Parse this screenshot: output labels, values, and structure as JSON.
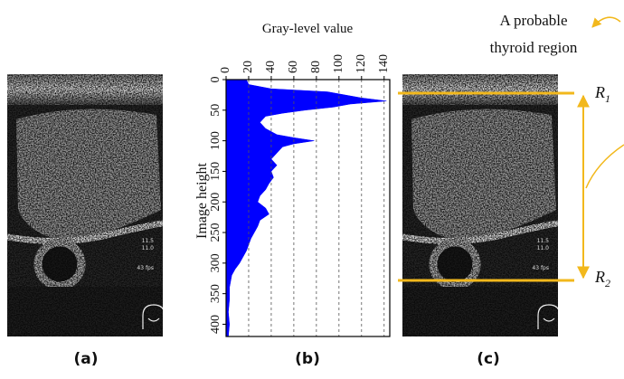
{
  "chart_data": {
    "type": "area",
    "x_label": "Image height",
    "y_label": "Gray-level value",
    "x": [
      0,
      8,
      15,
      20,
      25,
      30,
      35,
      40,
      45,
      50,
      55,
      60,
      70,
      80,
      90,
      95,
      100,
      105,
      110,
      120,
      130,
      140,
      150,
      160,
      170,
      180,
      190,
      200,
      210,
      220,
      230,
      240,
      250,
      260,
      270,
      280,
      290,
      300,
      310,
      320,
      330,
      340,
      360,
      380,
      400,
      420
    ],
    "values": [
      18,
      20,
      40,
      90,
      105,
      120,
      142,
      110,
      95,
      70,
      50,
      35,
      30,
      35,
      45,
      60,
      78,
      60,
      50,
      45,
      40,
      45,
      40,
      42,
      38,
      35,
      30,
      28,
      35,
      38,
      30,
      28,
      25,
      22,
      20,
      18,
      15,
      12,
      8,
      5,
      4,
      3,
      3,
      2,
      3,
      2
    ],
    "color": "#0000ff",
    "xlim": [
      0,
      420
    ],
    "xticks": [
      0,
      50,
      100,
      150,
      200,
      250,
      300,
      350,
      400
    ],
    "ylim": [
      0,
      145
    ],
    "yticks": [
      0,
      20,
      40,
      60,
      80,
      100,
      120,
      140
    ],
    "grid": true
  },
  "panels": {
    "captions": [
      "(a)",
      "(b)",
      "(c)"
    ],
    "image_texts": [
      "11.5",
      "11.0",
      "43 fps"
    ]
  },
  "annotation": {
    "text_lines": [
      "A probable",
      "thyroid region"
    ],
    "markers": [
      {
        "letter": "R",
        "index": "1"
      },
      {
        "letter": "R",
        "index": "2"
      }
    ]
  }
}
